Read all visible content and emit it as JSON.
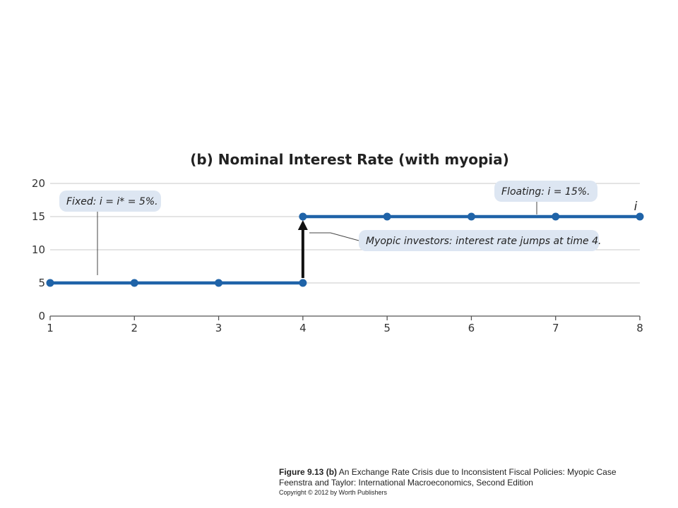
{
  "chart_data": {
    "type": "line",
    "title": "(b) Nominal Interest Rate (with myopia)",
    "xlabel": "",
    "ylabel": "",
    "x": [
      1,
      2,
      3,
      4,
      4,
      5,
      6,
      7,
      8
    ],
    "series": [
      {
        "name": "i",
        "x": [
          1,
          2,
          3,
          4,
          4,
          5,
          6,
          7,
          8
        ],
        "values": [
          5,
          5,
          5,
          5,
          15,
          15,
          15,
          15,
          15
        ]
      }
    ],
    "xlim": [
      1,
      8
    ],
    "ylim": [
      0,
      20
    ],
    "xticks": [
      "1",
      "2",
      "3",
      "4",
      "5",
      "6",
      "7",
      "8"
    ],
    "yticks": [
      "0",
      "5",
      "10",
      "15",
      "20"
    ],
    "grid": true,
    "annotations": {
      "fixed": "Fixed: i = i* = 5%.",
      "floating": "Floating: i = 15%.",
      "myopic": "Myopic investors: interest rate jumps at time 4."
    },
    "colors": {
      "line": "#1f63a8",
      "annotation_bg": "#dde6f2",
      "arrow": "#111111",
      "grid": "#c8c8c8"
    }
  },
  "caption": {
    "figure_label": "Figure 9.13 (b)",
    "figure_text": " An Exchange Rate Crisis due to Inconsistent Fiscal Policies: Myopic Case",
    "source": "Feenstra and Taylor: International Macroeconomics, Second Edition",
    "copyright": "Copyright © 2012 by Worth Publishers"
  }
}
